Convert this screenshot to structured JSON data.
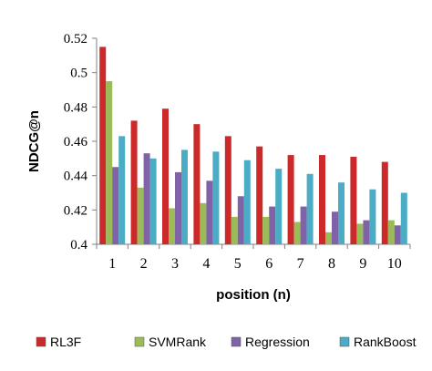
{
  "chart_data": {
    "type": "bar",
    "xlabel": "position (n)",
    "ylabel": "NDCG@n",
    "categories": [
      "1",
      "2",
      "3",
      "4",
      "5",
      "6",
      "7",
      "8",
      "9",
      "10"
    ],
    "ylim": [
      0.4,
      0.52
    ],
    "yticks": [
      "0.4",
      "0.42",
      "0.44",
      "0.46",
      "0.48",
      "0.5",
      "0.52"
    ],
    "grid": false,
    "legend_position": "bottom",
    "series": [
      {
        "name": "RL3F",
        "color": "#cc2a2a",
        "values": [
          0.515,
          0.472,
          0.479,
          0.47,
          0.463,
          0.457,
          0.452,
          0.452,
          0.451,
          0.448
        ]
      },
      {
        "name": "SVMRank",
        "color": "#9bbb59",
        "values": [
          0.495,
          0.433,
          0.421,
          0.424,
          0.416,
          0.416,
          0.413,
          0.407,
          0.412,
          0.414
        ]
      },
      {
        "name": "Regression",
        "color": "#7f63a6",
        "values": [
          0.445,
          0.453,
          0.442,
          0.437,
          0.428,
          0.422,
          0.422,
          0.419,
          0.414,
          0.411
        ]
      },
      {
        "name": "RankBoost",
        "color": "#4bacc6",
        "values": [
          0.463,
          0.45,
          0.455,
          0.454,
          0.449,
          0.444,
          0.441,
          0.436,
          0.432,
          0.43
        ]
      }
    ]
  }
}
